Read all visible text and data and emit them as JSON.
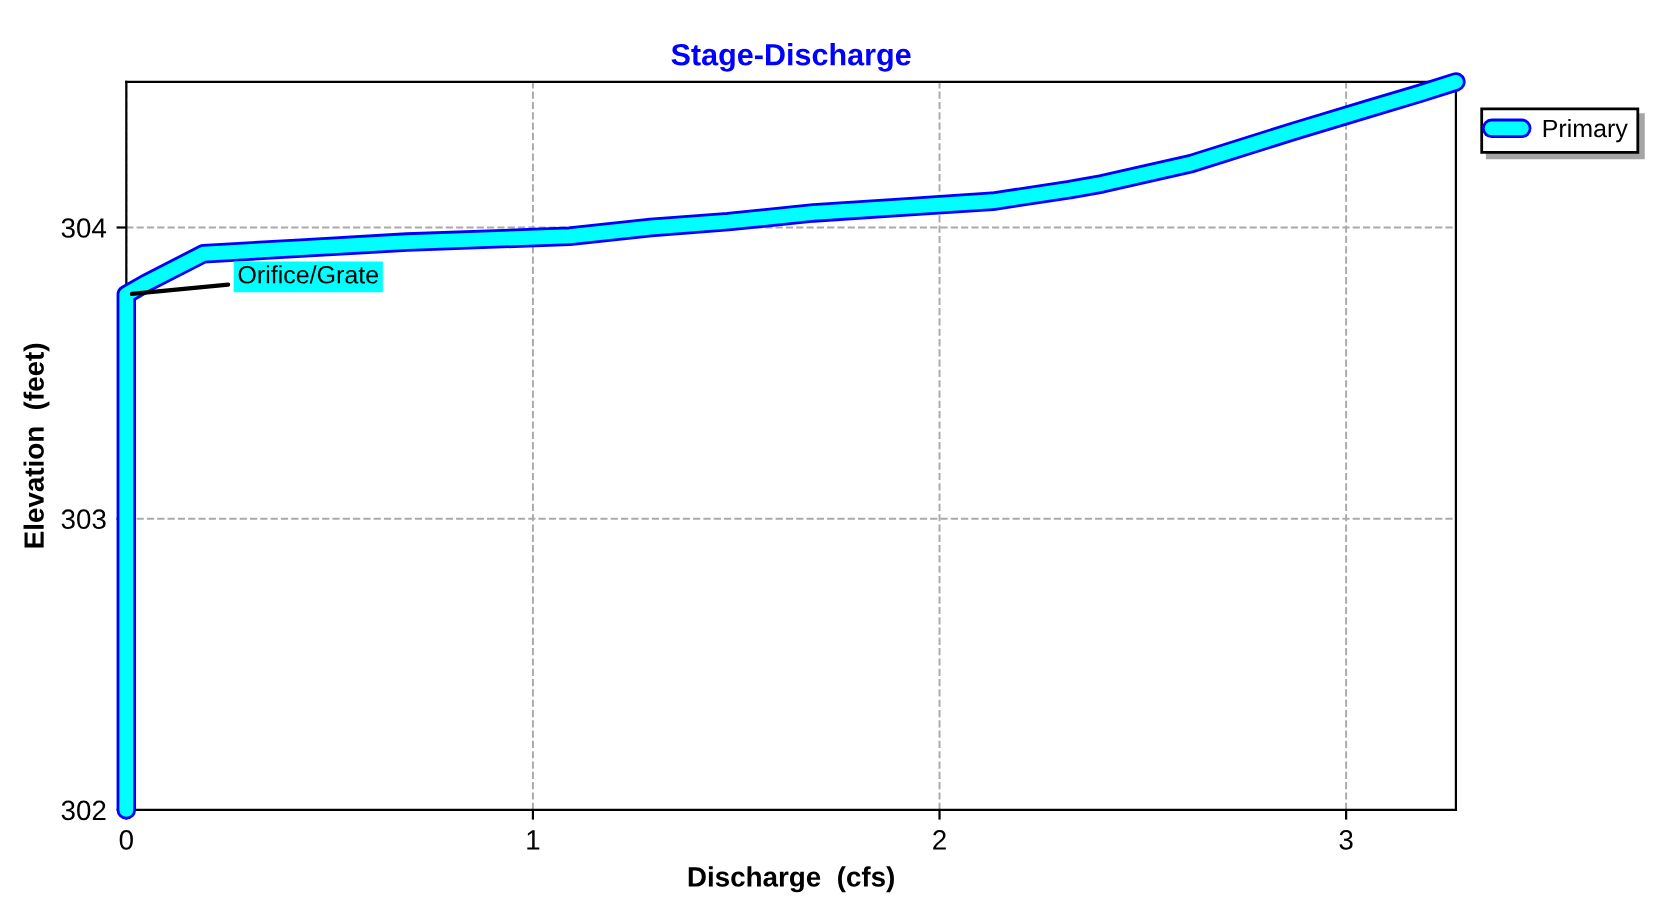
{
  "chart_data": {
    "type": "line",
    "title": "Stage-Discharge",
    "xlabel": "Discharge  (cfs)",
    "ylabel": "Elevation  (feet)",
    "series": [
      {
        "name": "Primary",
        "color": "#00ffff",
        "x": [
          0,
          0,
          0.05,
          0.19,
          0.44,
          0.69,
          1.09,
          1.29,
          1.48,
          1.69,
          1.91,
          2.13,
          2.32,
          2.4,
          2.62,
          2.87,
          3.06,
          3.18,
          3.27
        ],
        "values": [
          302,
          303.77,
          303.81,
          303.91,
          303.93,
          303.95,
          303.97,
          304.0,
          304.02,
          304.05,
          304.07,
          304.09,
          304.13,
          304.15,
          304.22,
          304.33,
          304.41,
          304.46,
          304.5
        ]
      }
    ],
    "annotations": [
      {
        "text": "Orifice/Grate",
        "x": 0,
        "y": 303.77
      }
    ],
    "xlim": [
      0,
      3.27
    ],
    "ylim": [
      302,
      304.5
    ],
    "xticks": [
      0,
      1,
      2,
      3
    ],
    "yticks": [
      302,
      303,
      304
    ],
    "grid": true,
    "legend": "top right"
  }
}
